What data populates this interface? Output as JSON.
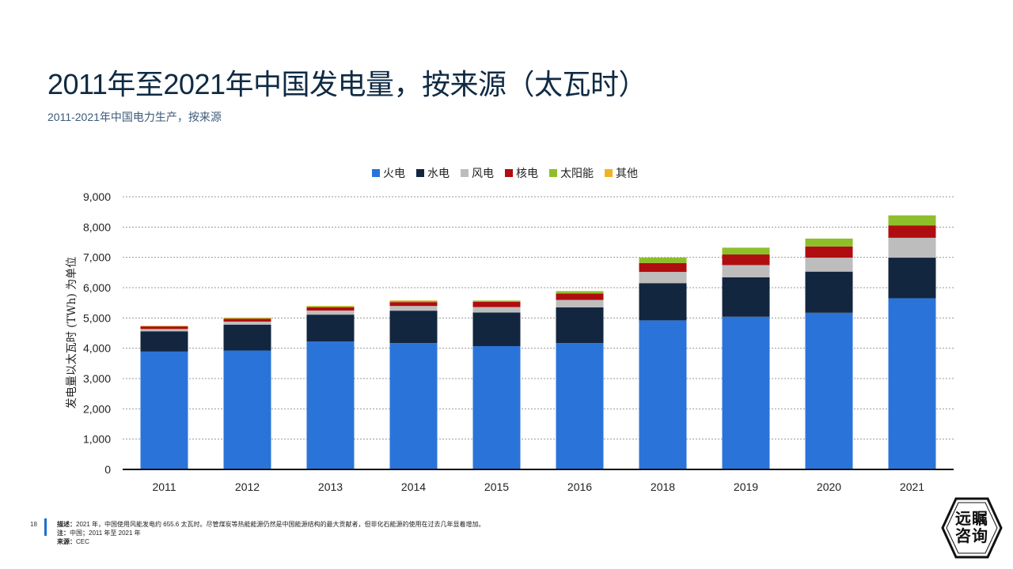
{
  "header": {
    "title": "2011年至2021年中国发电量，按来源（太瓦时）",
    "subtitle": "2011-2021年中国电力生产，按来源"
  },
  "footer": {
    "page_number": "18",
    "desc_label": "描述：",
    "desc_text": "2021 年，中国使用风能发电约 655.6 太瓦时。尽管煤炭等热能能源仍然是中国能源结构的最大贡献者，但非化石能源的使用在过去几年显着增加。",
    "note_label": "注：",
    "note_text": "中国；2011 年至 2021 年",
    "source_label": "来源：",
    "source_text": "CEC"
  },
  "logo": {
    "line1": "远瞩",
    "line2": "咨询"
  },
  "chart_data": {
    "type": "bar",
    "stacked": true,
    "categories": [
      "2011",
      "2012",
      "2013",
      "2014",
      "2015",
      "2016",
      "2018",
      "2019",
      "2020",
      "2021"
    ],
    "ylabel": "发电量以太瓦时 (TWh) 为单位",
    "ylim": [
      0,
      9000
    ],
    "yticks": [
      0,
      1000,
      2000,
      3000,
      4000,
      5000,
      6000,
      7000,
      8000,
      9000
    ],
    "ytick_labels": [
      "0",
      "1,000",
      "2,000",
      "3,000",
      "4,000",
      "5,000",
      "6,000",
      "7,000",
      "8,000",
      "9,000"
    ],
    "grid": true,
    "legend_position": "top",
    "series": [
      {
        "name": "火电",
        "color": "#2a74d9",
        "values": [
          3890,
          3925,
          4220,
          4170,
          4070,
          4170,
          4920,
          5040,
          5170,
          5650
        ]
      },
      {
        "name": "水电",
        "color": "#13263f",
        "values": [
          670,
          855,
          890,
          1070,
          1110,
          1180,
          1230,
          1300,
          1360,
          1340
        ]
      },
      {
        "name": "风电",
        "color": "#bdbdbd",
        "values": [
          75,
          100,
          135,
          155,
          180,
          245,
          370,
          405,
          460,
          656
        ]
      },
      {
        "name": "核电",
        "color": "#b00d10",
        "values": [
          85,
          95,
          110,
          130,
          175,
          215,
          295,
          350,
          370,
          410
        ]
      },
      {
        "name": "太阳能",
        "color": "#8dbf2a",
        "values": [
          10,
          20,
          30,
          40,
          40,
          70,
          180,
          225,
          260,
          330
        ]
      },
      {
        "name": "其他",
        "color": "#f0b323",
        "values": [
          15,
          15,
          15,
          15,
          0,
          10,
          0,
          0,
          0,
          0
        ]
      }
    ]
  }
}
